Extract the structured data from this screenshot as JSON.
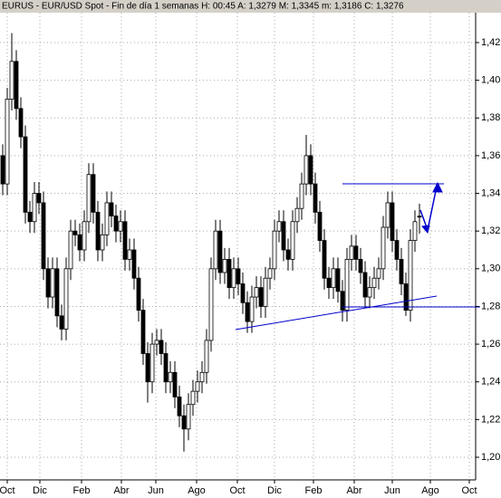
{
  "chart_data": {
    "type": "candlestick",
    "title": "EURUS - EUR/USD Spot - Fin de día 1 semanas H: 00:45 A: 1,3279 M: 1,3345 m: 1,3186 C: 1,3276",
    "x": [
      0,
      1,
      2,
      3,
      4,
      5,
      6,
      7,
      8,
      9,
      10,
      11,
      12,
      13,
      14,
      15,
      16,
      17,
      18,
      19,
      20,
      21,
      22,
      23,
      24,
      25,
      26,
      27,
      28,
      29,
      30,
      31,
      32,
      33,
      34,
      35,
      36,
      37,
      38,
      39,
      40,
      41,
      42,
      43,
      44,
      45,
      46,
      47,
      48,
      49,
      50,
      51,
      52,
      53,
      54,
      55,
      56,
      57,
      58,
      59,
      60,
      61,
      62,
      63,
      64,
      65,
      66,
      67,
      68,
      69,
      70,
      71,
      72,
      73,
      74,
      75,
      76,
      77,
      78,
      79,
      80,
      81,
      82,
      83,
      84,
      85,
      86,
      87,
      88,
      89,
      90,
      91,
      92
    ],
    "open": [
      1.36,
      1.345,
      1.39,
      1.41,
      1.385,
      1.37,
      1.33,
      1.325,
      1.34,
      1.335,
      1.3,
      1.285,
      1.3,
      1.275,
      1.268,
      1.3,
      1.32,
      1.318,
      1.31,
      1.325,
      1.35,
      1.33,
      1.31,
      1.318,
      1.335,
      1.328,
      1.32,
      1.325,
      1.305,
      1.31,
      1.295,
      1.278,
      1.255,
      1.24,
      1.26,
      1.262,
      1.255,
      1.24,
      1.245,
      1.232,
      1.222,
      1.215,
      1.228,
      1.235,
      1.24,
      1.245,
      1.262,
      1.3,
      1.32,
      1.298,
      1.305,
      1.29,
      1.3,
      1.292,
      1.282,
      1.272,
      1.285,
      1.29,
      1.28,
      1.295,
      1.3,
      1.32,
      1.325,
      1.31,
      1.305,
      1.325,
      1.332,
      1.345,
      1.36,
      1.345,
      1.33,
      1.315,
      1.295,
      1.29,
      1.3,
      1.288,
      1.278,
      1.305,
      1.312,
      1.305,
      1.298,
      1.285,
      1.29,
      1.295,
      1.3,
      1.322,
      1.335,
      1.315,
      1.305,
      1.292,
      1.278,
      1.315,
      1.3279
    ],
    "high": [
      1.366,
      1.396,
      1.425,
      1.416,
      1.391,
      1.376,
      1.336,
      1.346,
      1.346,
      1.341,
      1.306,
      1.306,
      1.306,
      1.281,
      1.306,
      1.326,
      1.326,
      1.324,
      1.331,
      1.356,
      1.356,
      1.336,
      1.324,
      1.341,
      1.341,
      1.334,
      1.331,
      1.331,
      1.316,
      1.316,
      1.301,
      1.284,
      1.261,
      1.266,
      1.268,
      1.268,
      1.261,
      1.251,
      1.251,
      1.238,
      1.228,
      1.234,
      1.241,
      1.246,
      1.251,
      1.268,
      1.306,
      1.326,
      1.326,
      1.311,
      1.311,
      1.306,
      1.306,
      1.298,
      1.288,
      1.291,
      1.296,
      1.296,
      1.301,
      1.306,
      1.326,
      1.331,
      1.331,
      1.316,
      1.331,
      1.338,
      1.351,
      1.371,
      1.366,
      1.351,
      1.336,
      1.321,
      1.301,
      1.306,
      1.306,
      1.294,
      1.311,
      1.318,
      1.318,
      1.311,
      1.304,
      1.296,
      1.301,
      1.306,
      1.328,
      1.341,
      1.341,
      1.321,
      1.311,
      1.298,
      1.321,
      1.331,
      1.3345
    ],
    "low": [
      1.339,
      1.339,
      1.384,
      1.379,
      1.364,
      1.324,
      1.319,
      1.319,
      1.329,
      1.294,
      1.279,
      1.279,
      1.269,
      1.262,
      1.262,
      1.294,
      1.312,
      1.304,
      1.304,
      1.319,
      1.324,
      1.304,
      1.304,
      1.312,
      1.322,
      1.314,
      1.314,
      1.299,
      1.299,
      1.289,
      1.272,
      1.249,
      1.229,
      1.234,
      1.254,
      1.249,
      1.234,
      1.234,
      1.226,
      1.216,
      1.203,
      1.209,
      1.222,
      1.229,
      1.234,
      1.239,
      1.256,
      1.294,
      1.292,
      1.292,
      1.284,
      1.284,
      1.286,
      1.276,
      1.266,
      1.266,
      1.279,
      1.274,
      1.274,
      1.289,
      1.294,
      1.314,
      1.304,
      1.299,
      1.299,
      1.319,
      1.326,
      1.339,
      1.339,
      1.324,
      1.309,
      1.289,
      1.284,
      1.284,
      1.282,
      1.272,
      1.272,
      1.299,
      1.299,
      1.292,
      1.279,
      1.279,
      1.284,
      1.289,
      1.294,
      1.316,
      1.309,
      1.299,
      1.286,
      1.275,
      1.272,
      1.309,
      1.3186
    ],
    "close": [
      1.345,
      1.39,
      1.41,
      1.385,
      1.37,
      1.33,
      1.325,
      1.34,
      1.335,
      1.3,
      1.285,
      1.3,
      1.275,
      1.268,
      1.3,
      1.32,
      1.318,
      1.31,
      1.325,
      1.35,
      1.33,
      1.31,
      1.318,
      1.335,
      1.328,
      1.32,
      1.325,
      1.305,
      1.31,
      1.295,
      1.278,
      1.255,
      1.24,
      1.26,
      1.262,
      1.255,
      1.24,
      1.245,
      1.232,
      1.222,
      1.215,
      1.228,
      1.235,
      1.24,
      1.245,
      1.262,
      1.3,
      1.32,
      1.298,
      1.305,
      1.29,
      1.3,
      1.292,
      1.282,
      1.272,
      1.285,
      1.29,
      1.28,
      1.295,
      1.3,
      1.32,
      1.325,
      1.31,
      1.305,
      1.325,
      1.332,
      1.345,
      1.36,
      1.345,
      1.33,
      1.315,
      1.295,
      1.29,
      1.3,
      1.288,
      1.278,
      1.305,
      1.312,
      1.305,
      1.298,
      1.285,
      1.29,
      1.295,
      1.3,
      1.322,
      1.335,
      1.315,
      1.305,
      1.292,
      1.278,
      1.315,
      1.325,
      1.3276
    ],
    "xlim": [
      -0.6,
      104.4
    ],
    "xticks": [
      {
        "value": 1,
        "label": "Oct"
      },
      {
        "value": 8.2,
        "label": "Dic"
      },
      {
        "value": 17.4,
        "label": "Feb"
      },
      {
        "value": 26.2,
        "label": "Abr"
      },
      {
        "value": 33.8,
        "label": "Jun"
      },
      {
        "value": 42.8,
        "label": "Ago"
      },
      {
        "value": 51.8,
        "label": "Oct"
      },
      {
        "value": 60,
        "label": "Dic"
      },
      {
        "value": 68.6,
        "label": "Feb"
      },
      {
        "value": 77.6,
        "label": "Abr"
      },
      {
        "value": 86,
        "label": "Jun"
      },
      {
        "value": 94.4,
        "label": "Ago"
      },
      {
        "value": 103,
        "label": "Oct"
      }
    ],
    "ylim": [
      1.2,
      1.42
    ],
    "yticks": [
      {
        "value": 1.2,
        "label": "1,20"
      },
      {
        "value": 1.22,
        "label": "1,22"
      },
      {
        "value": 1.24,
        "label": "1,24"
      },
      {
        "value": 1.26,
        "label": "1,26"
      },
      {
        "value": 1.28,
        "label": "1,28"
      },
      {
        "value": 1.3,
        "label": "1,30"
      },
      {
        "value": 1.32,
        "label": "1,32"
      },
      {
        "value": 1.34,
        "label": "1,34"
      },
      {
        "value": 1.36,
        "label": "1,36"
      },
      {
        "value": 1.38,
        "label": "1,38"
      },
      {
        "value": 1.4,
        "label": "1,40"
      },
      {
        "value": 1.42,
        "label": "1,42"
      }
    ],
    "grid": true,
    "up_color": "#ffffff",
    "down_color": "#000000"
  }
}
